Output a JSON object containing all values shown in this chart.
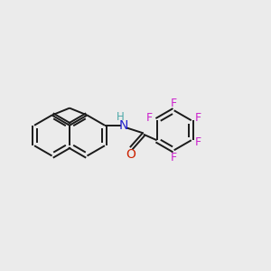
{
  "background_color": "#ebebeb",
  "bond_color": "#1a1a1a",
  "N_color": "#2222cc",
  "O_color": "#cc2200",
  "F_color": "#cc22cc",
  "NH_color": "#4aa8a8",
  "label_fontsize": 10,
  "figsize": [
    3.0,
    3.0
  ],
  "dpi": 100,
  "xlim": [
    0,
    12
  ],
  "ylim": [
    0,
    12
  ]
}
